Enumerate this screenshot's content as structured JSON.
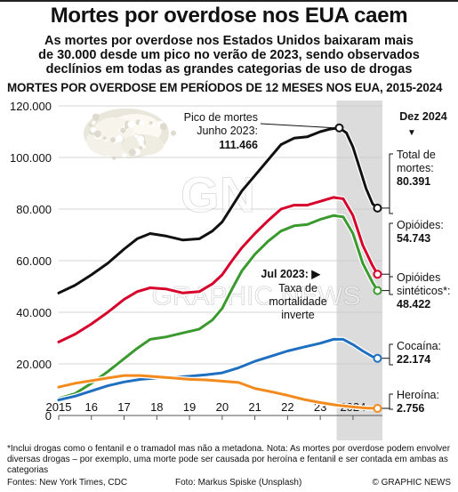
{
  "header": {
    "title": "Mortes por overdose nos EUA caem",
    "subtitle_lines": [
      "As mortes por overdose nos Estados Unidos baixaram mais",
      "de 30.000 desde um pico no verão de 2023, sendo observados",
      "declínios em todas as grandes categorias de uso de drogas"
    ],
    "section_label": "MORTES POR OVERDOSE EM PERÍODOS DE 12 MESES NOS EUA, 2015-2024"
  },
  "chart_data": {
    "type": "line",
    "x_unit": "year",
    "xlim": [
      2015,
      2024.9
    ],
    "ylim": [
      0,
      120000
    ],
    "grid": "horizontal",
    "y_ticks": [
      {
        "value": 0,
        "label": "0"
      },
      {
        "value": 20000,
        "label": "20.000"
      },
      {
        "value": 40000,
        "label": "40.000"
      },
      {
        "value": 60000,
        "label": "60.000"
      },
      {
        "value": 80000,
        "label": "80.000"
      },
      {
        "value": 100000,
        "label": "100.000"
      },
      {
        "value": 120000,
        "label": "120.000"
      }
    ],
    "x_ticks": [
      {
        "value": 2015,
        "label": "2015"
      },
      {
        "value": 2016,
        "label": "16"
      },
      {
        "value": 2017,
        "label": "17"
      },
      {
        "value": 2018,
        "label": "18"
      },
      {
        "value": 2019,
        "label": "19"
      },
      {
        "value": 2020,
        "label": "20"
      },
      {
        "value": 2021,
        "label": "21"
      },
      {
        "value": 2022,
        "label": "22"
      },
      {
        "value": 2023,
        "label": "23"
      },
      {
        "value": 2024,
        "label": "2024"
      }
    ],
    "shaded_period": [
      2023.5,
      2024.9
    ],
    "series": [
      {
        "name": "Total de mortes",
        "color": "#111111",
        "final_label": "80.391",
        "points": [
          [
            2015.0,
            47500
          ],
          [
            2015.5,
            50500
          ],
          [
            2016.0,
            54500
          ],
          [
            2016.5,
            59000
          ],
          [
            2017.0,
            64500
          ],
          [
            2017.4,
            68500
          ],
          [
            2017.8,
            70500
          ],
          [
            2018.3,
            69500
          ],
          [
            2018.8,
            68000
          ],
          [
            2019.3,
            68500
          ],
          [
            2019.7,
            71500
          ],
          [
            2020.0,
            75000
          ],
          [
            2020.3,
            81000
          ],
          [
            2020.6,
            87000
          ],
          [
            2021.0,
            93000
          ],
          [
            2021.4,
            99000
          ],
          [
            2021.8,
            105000
          ],
          [
            2022.2,
            107500
          ],
          [
            2022.6,
            108000
          ],
          [
            2023.0,
            110000
          ],
          [
            2023.3,
            111000
          ],
          [
            2023.58,
            111466
          ],
          [
            2023.8,
            109500
          ],
          [
            2024.0,
            104000
          ],
          [
            2024.2,
            96000
          ],
          [
            2024.4,
            88000
          ],
          [
            2024.6,
            82000
          ],
          [
            2024.75,
            80391
          ]
        ]
      },
      {
        "name": "Opióides",
        "color": "#d6002a",
        "final_label": "54.743",
        "points": [
          [
            2015.0,
            28500
          ],
          [
            2015.5,
            31500
          ],
          [
            2016.0,
            35500
          ],
          [
            2016.5,
            40000
          ],
          [
            2017.0,
            45000
          ],
          [
            2017.4,
            48000
          ],
          [
            2017.8,
            49500
          ],
          [
            2018.3,
            49000
          ],
          [
            2018.8,
            47500
          ],
          [
            2019.3,
            48000
          ],
          [
            2019.7,
            51000
          ],
          [
            2020.0,
            54500
          ],
          [
            2020.3,
            60000
          ],
          [
            2020.6,
            65000
          ],
          [
            2021.0,
            70500
          ],
          [
            2021.4,
            75500
          ],
          [
            2021.8,
            80000
          ],
          [
            2022.2,
            81500
          ],
          [
            2022.6,
            81500
          ],
          [
            2023.0,
            83000
          ],
          [
            2023.4,
            84500
          ],
          [
            2023.7,
            84000
          ],
          [
            2024.0,
            77500
          ],
          [
            2024.3,
            66000
          ],
          [
            2024.6,
            58000
          ],
          [
            2024.75,
            54743
          ]
        ]
      },
      {
        "name": "Opióides sintéticos*",
        "color": "#3a9a2e",
        "final_label": "48.422",
        "points": [
          [
            2015.0,
            6500
          ],
          [
            2015.5,
            8500
          ],
          [
            2016.0,
            12500
          ],
          [
            2016.5,
            17000
          ],
          [
            2017.0,
            22000
          ],
          [
            2017.4,
            26000
          ],
          [
            2017.8,
            29500
          ],
          [
            2018.3,
            30500
          ],
          [
            2018.8,
            32000
          ],
          [
            2019.3,
            33500
          ],
          [
            2019.7,
            37000
          ],
          [
            2020.0,
            41500
          ],
          [
            2020.3,
            49000
          ],
          [
            2020.6,
            56000
          ],
          [
            2021.0,
            62500
          ],
          [
            2021.4,
            67500
          ],
          [
            2021.8,
            71500
          ],
          [
            2022.2,
            73500
          ],
          [
            2022.6,
            74000
          ],
          [
            2023.0,
            76000
          ],
          [
            2023.4,
            77500
          ],
          [
            2023.7,
            77000
          ],
          [
            2024.0,
            70500
          ],
          [
            2024.3,
            59000
          ],
          [
            2024.6,
            51500
          ],
          [
            2024.75,
            48422
          ]
        ]
      },
      {
        "name": "Cocaína",
        "color": "#1f6fc0",
        "final_label": "22.174",
        "points": [
          [
            2015.0,
            6000
          ],
          [
            2015.5,
            7500
          ],
          [
            2016.0,
            9500
          ],
          [
            2016.5,
            11500
          ],
          [
            2017.0,
            13000
          ],
          [
            2017.5,
            14000
          ],
          [
            2018.0,
            14500
          ],
          [
            2018.5,
            14800
          ],
          [
            2019.0,
            15200
          ],
          [
            2019.5,
            15800
          ],
          [
            2020.0,
            16500
          ],
          [
            2020.5,
            18500
          ],
          [
            2021.0,
            21000
          ],
          [
            2021.5,
            23000
          ],
          [
            2022.0,
            25000
          ],
          [
            2022.5,
            26500
          ],
          [
            2023.0,
            28000
          ],
          [
            2023.4,
            29500
          ],
          [
            2023.7,
            29500
          ],
          [
            2024.0,
            27500
          ],
          [
            2024.3,
            25000
          ],
          [
            2024.6,
            22800
          ],
          [
            2024.75,
            22174
          ]
        ]
      },
      {
        "name": "Heroína",
        "color": "#f28a1e",
        "final_label": "2.756",
        "points": [
          [
            2015.0,
            11000
          ],
          [
            2015.5,
            12500
          ],
          [
            2016.0,
            13500
          ],
          [
            2016.5,
            14500
          ],
          [
            2017.0,
            15500
          ],
          [
            2017.5,
            15500
          ],
          [
            2018.0,
            15000
          ],
          [
            2018.5,
            14500
          ],
          [
            2019.0,
            14000
          ],
          [
            2019.5,
            13800
          ],
          [
            2020.0,
            13300
          ],
          [
            2020.5,
            12800
          ],
          [
            2021.0,
            10500
          ],
          [
            2021.5,
            9200
          ],
          [
            2022.0,
            7800
          ],
          [
            2022.5,
            6200
          ],
          [
            2023.0,
            5000
          ],
          [
            2023.5,
            4000
          ],
          [
            2024.0,
            3300
          ],
          [
            2024.4,
            2900
          ],
          [
            2024.75,
            2756
          ]
        ]
      }
    ],
    "peak_annotation": {
      "lines": [
        "Pico de mortes",
        "Junho 2023:"
      ],
      "value": "111.466"
    },
    "inflection_annotation": {
      "date": "Jul 2023:",
      "lines": [
        "Taxa de",
        "mortalidade",
        "inverte"
      ]
    },
    "right_header": "Dez 2024",
    "right_labels": [
      {
        "series": "Total de mortes",
        "lines": [
          "Total de",
          "mortes:"
        ],
        "value": "80.391"
      },
      {
        "series": "Opióides",
        "lines": [
          "Opióides:"
        ],
        "value": "54.743"
      },
      {
        "series": "Opióides sintéticos*",
        "lines": [
          "Opióides",
          "sintéticos*:"
        ],
        "value": "48.422"
      },
      {
        "series": "Cocaína",
        "lines": [
          "Cocaína:"
        ],
        "value": "22.174"
      },
      {
        "series": "Heroína",
        "lines": [
          "Heroína:"
        ],
        "value": "2.756"
      }
    ],
    "watermark": "GRAPHIC NEWS"
  },
  "footer": {
    "note": "*Inclui drogas como o fentanil e o tramadol mas não a metadona. Nota: As mortes por overdose podem envolver diversas drogas – por exemplo, uma morte pode ser causada por heroína e fentanil e ser contada em ambas as categorias",
    "sources": "Fontes: New York Times, CDC",
    "photo": "Foto: Markus Spiske (Unsplash)",
    "copyright": "© GRAPHIC NEWS"
  }
}
